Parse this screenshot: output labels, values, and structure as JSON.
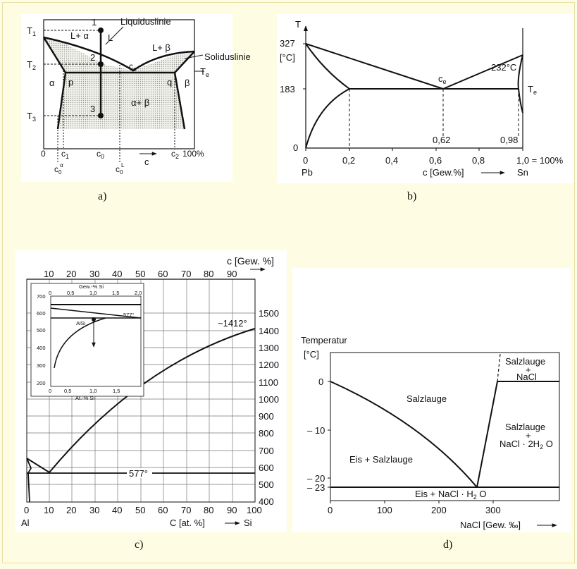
{
  "panels": {
    "a": {
      "caption": "a)",
      "labels": {
        "t1": "T",
        "t1_sub": "1",
        "t2": "T",
        "t2_sub": "2",
        "t3": "T",
        "t3_sub": "3",
        "te": "T",
        "te_sub": "e",
        "p1": "1",
        "p2": "2",
        "p3": "3",
        "L": "L",
        "L_alpha": "L+ α",
        "L_beta": "L+ β",
        "ce": "c",
        "ce_sub": "e",
        "alpha": "α",
        "beta": "β",
        "p": "p",
        "q": "q",
        "alpha_beta": "α+ β",
        "liquidus": "Liquiduslinie",
        "solidus": "Solidus­linie",
        "x0": "0",
        "c1": "c",
        "c1_sub": "1",
        "c0": "c",
        "c0_sub": "0",
        "c2": "c",
        "c2_sub": "2",
        "arrow_c": "c",
        "x100": "100%",
        "c0alpha": "c",
        "c0alpha_sub": "0",
        "c0alpha_sup": "α",
        "c0L": "c",
        "c0L_sub": "0",
        "c0L_sup": "L"
      }
    },
    "b": {
      "caption": "b)",
      "y_title": "T",
      "y_unit": "[°C]",
      "y_ticks": [
        "327",
        "183",
        "0"
      ],
      "x_ticks": [
        "0",
        "0,2",
        "0,4",
        "0,6",
        "0,8",
        "1,0 = 100%"
      ],
      "x_title": "c [Gew.%]",
      "left_label": "Pb",
      "right_label": "Sn",
      "annot_232": "232°C",
      "ce": "c",
      "ce_sub": "e",
      "te": "T",
      "te_sub": "e",
      "val_062": "0,62",
      "val_098": "0,98"
    },
    "c": {
      "caption": "c)",
      "top_title": "c [Gew. %]",
      "top_ticks": [
        "10",
        "20",
        "30",
        "40",
        "50",
        "60",
        "70",
        "80",
        "90"
      ],
      "right_ticks": [
        "1500",
        "1400",
        "1300",
        "1200",
        "1100",
        "1000",
        "900",
        "800",
        "700",
        "600",
        "500",
        "400"
      ],
      "bottom_ticks": [
        "0",
        "10",
        "20",
        "30",
        "40",
        "50",
        "60",
        "70",
        "80",
        "90",
        "100"
      ],
      "bottom_title": "C [at. %]",
      "left_label": "Al",
      "right_label": "Si",
      "annot_1412": "~1412°",
      "annot_577": "577°",
      "inset": {
        "top_title": "Gew.-% Si",
        "top_ticks": [
          "0",
          "0,5",
          "1,0",
          "1,5",
          "2,0"
        ],
        "left_ticks": [
          "700",
          "600",
          "500",
          "400",
          "300",
          "200"
        ],
        "bottom_ticks": [
          "0",
          "0,5",
          "1,0",
          "1,5"
        ],
        "bottom_title": "At.-% Si",
        "annot_577": "577°",
        "alsi": "AlSi"
      }
    },
    "d": {
      "caption": "d)",
      "y_title": "Temperatur",
      "y_unit": "[°C]",
      "y_ticks": [
        "0",
        "– 10",
        "– 20",
        "– 23"
      ],
      "x_ticks": [
        "0",
        "100",
        "200",
        "300"
      ],
      "x_title": "NaCl [Gew. ‰]",
      "region_salzlauge": "Salzlauge",
      "region_eis_salz": "Eis + Salzlauge",
      "region_salz_nacl_1": "Salzlauge",
      "region_salz_nacl_2": "+",
      "region_salz_nacl_3": "NaCl",
      "region_salz_hyd_1": "Salzlauge",
      "region_salz_hyd_2": "+",
      "region_salz_hyd_3": "NaCl · 2H",
      "region_salz_hyd_sub": "2",
      "region_salz_hyd_4": " O",
      "region_eis_nacl": "Eis + NaCl · H",
      "region_eis_nacl_sub": "2",
      "region_eis_nacl_2": " O"
    }
  }
}
